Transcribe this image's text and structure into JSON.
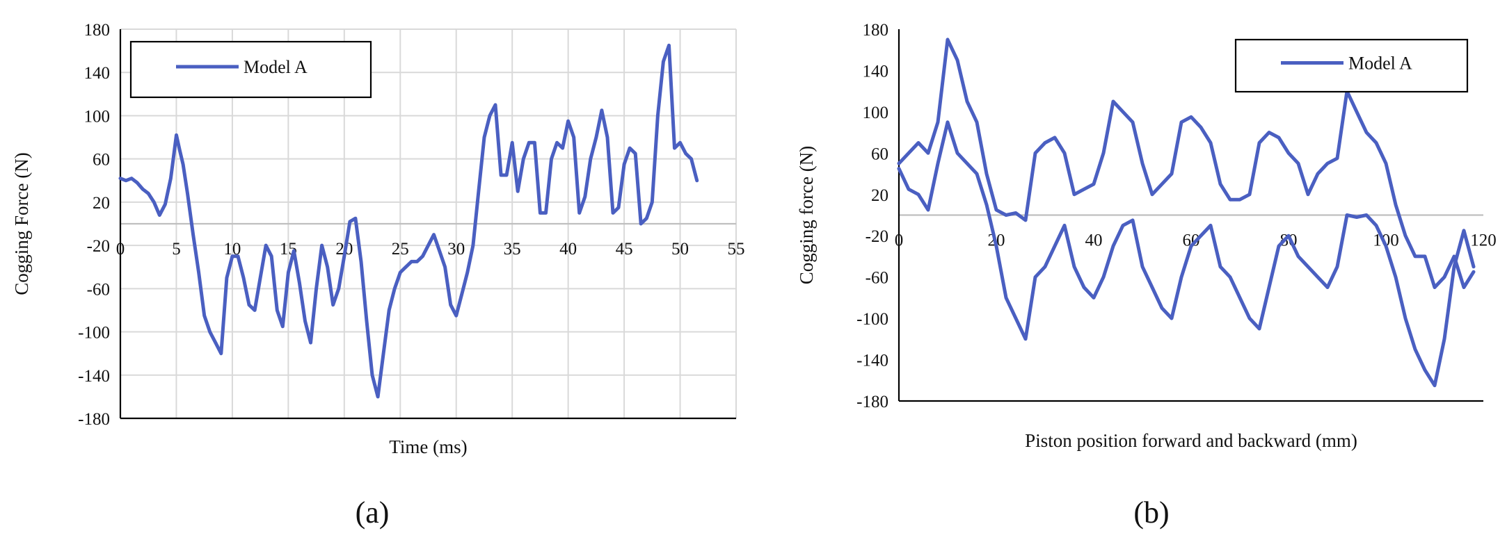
{
  "chart_data": [
    {
      "panel": "(a)",
      "type": "line",
      "title": "",
      "xlabel": "Time (ms)",
      "ylabel": "Cogging Force (N)",
      "xlim": [
        0,
        55
      ],
      "ylim": [
        -180,
        180
      ],
      "xticks": [
        0,
        5,
        10,
        15,
        20,
        25,
        30,
        35,
        40,
        45,
        50,
        55
      ],
      "yticks": [
        180,
        140,
        100,
        60,
        20,
        -20,
        -60,
        -100,
        -140,
        -180
      ],
      "grid": true,
      "legend": {
        "placement": "top-left",
        "entries": [
          "Model A"
        ]
      },
      "series": [
        {
          "name": "Model A",
          "color": "#4a5fc1",
          "x": [
            0,
            0.5,
            1,
            1.5,
            2,
            2.5,
            3,
            3.5,
            4,
            4.5,
            5,
            5.3,
            5.6,
            6,
            6.5,
            7,
            7.5,
            8,
            8.5,
            9,
            9.5,
            10,
            10.5,
            11,
            11.5,
            12,
            12.5,
            13,
            13.5,
            14,
            14.5,
            15,
            15.5,
            16,
            16.5,
            17,
            17.5,
            18,
            18.5,
            19,
            19.5,
            20,
            20.5,
            21,
            21.5,
            22,
            22.5,
            23,
            23.5,
            24,
            24.5,
            25,
            25.5,
            26,
            26.5,
            27,
            27.5,
            28,
            28.5,
            29,
            29.5,
            30,
            30.5,
            31,
            31.5,
            32,
            32.5,
            33,
            33.5,
            34,
            34.5,
            35,
            35.5,
            36,
            36.5,
            37,
            37.5,
            38,
            38.5,
            39,
            39.5,
            40,
            40.5,
            41,
            41.5,
            42,
            42.5,
            43,
            43.5,
            44,
            44.5,
            45,
            45.5,
            46,
            46.5,
            47,
            47.5,
            48,
            48.5,
            49,
            49.5,
            50,
            50.5,
            51,
            51.5
          ],
          "y": [
            42,
            40,
            42,
            38,
            32,
            28,
            20,
            8,
            18,
            42,
            82,
            68,
            55,
            28,
            -10,
            -45,
            -85,
            -100,
            -110,
            -120,
            -50,
            -30,
            -30,
            -50,
            -75,
            -80,
            -50,
            -20,
            -30,
            -80,
            -95,
            -45,
            -25,
            -55,
            -90,
            -110,
            -60,
            -20,
            -40,
            -75,
            -60,
            -30,
            2,
            5,
            -35,
            -90,
            -140,
            -160,
            -120,
            -80,
            -60,
            -45,
            -40,
            -35,
            -35,
            -30,
            -20,
            -10,
            -25,
            -40,
            -75,
            -85,
            -65,
            -45,
            -20,
            30,
            80,
            100,
            110,
            45,
            45,
            75,
            30,
            60,
            75,
            75,
            10,
            10,
            60,
            75,
            70,
            95,
            80,
            10,
            25,
            60,
            80,
            105,
            80,
            10,
            15,
            55,
            70,
            65,
            0,
            5,
            20,
            100,
            150,
            165,
            70,
            75,
            65,
            60,
            40
          ]
        }
      ]
    },
    {
      "panel": "(b)",
      "type": "line",
      "title": "",
      "xlabel": "Piston position forward and backward (mm)",
      "ylabel": "Cogging force (N)",
      "xlim": [
        0,
        120
      ],
      "ylim": [
        -180,
        180
      ],
      "xticks": [
        0,
        20,
        40,
        60,
        80,
        100,
        120
      ],
      "yticks": [
        180,
        140,
        100,
        60,
        20,
        -20,
        -60,
        -100,
        -140,
        -180
      ],
      "grid": false,
      "legend": {
        "placement": "top-right",
        "entries": [
          "Model A"
        ]
      },
      "series": [
        {
          "name": "Model A",
          "color": "#4a5fc1",
          "x": [
            0,
            2,
            4,
            6,
            8,
            10,
            12,
            14,
            16,
            18,
            20,
            22,
            24,
            26,
            28,
            30,
            32,
            34,
            36,
            38,
            40,
            42,
            44,
            46,
            48,
            50,
            52,
            54,
            56,
            58,
            60,
            62,
            64,
            66,
            68,
            70,
            72,
            74,
            76,
            78,
            80,
            82,
            84,
            86,
            88,
            90,
            92,
            94,
            96,
            98,
            100,
            102,
            104,
            106,
            108,
            110,
            112,
            114,
            116,
            118
          ],
          "y": [
            50,
            60,
            70,
            60,
            90,
            170,
            150,
            110,
            90,
            40,
            5,
            0,
            2,
            -5,
            60,
            70,
            75,
            60,
            20,
            25,
            30,
            60,
            110,
            100,
            90,
            50,
            20,
            30,
            40,
            90,
            95,
            85,
            70,
            30,
            15,
            15,
            20,
            70,
            80,
            75,
            60,
            50,
            20,
            40,
            50,
            55,
            120,
            100,
            80,
            70,
            50,
            10,
            -20,
            -40,
            -40,
            -70,
            -60,
            -40,
            -70,
            -55
          ]
        },
        {
          "name": "",
          "color": "#4a5fc1",
          "x": [
            0,
            2,
            4,
            6,
            8,
            10,
            12,
            14,
            16,
            18,
            20,
            22,
            24,
            26,
            28,
            30,
            32,
            34,
            36,
            38,
            40,
            42,
            44,
            46,
            48,
            50,
            52,
            54,
            56,
            58,
            60,
            62,
            64,
            66,
            68,
            70,
            72,
            74,
            76,
            78,
            80,
            82,
            84,
            86,
            88,
            90,
            92,
            94,
            96,
            98,
            100,
            102,
            104,
            106,
            108,
            110,
            112,
            114,
            116,
            118
          ],
          "y": [
            45,
            25,
            20,
            5,
            50,
            90,
            60,
            50,
            40,
            10,
            -30,
            -80,
            -100,
            -120,
            -60,
            -50,
            -30,
            -10,
            -50,
            -70,
            -80,
            -60,
            -30,
            -10,
            -5,
            -50,
            -70,
            -90,
            -100,
            -60,
            -30,
            -20,
            -10,
            -50,
            -60,
            -80,
            -100,
            -110,
            -70,
            -30,
            -20,
            -40,
            -50,
            -60,
            -70,
            -50,
            0,
            -2,
            0,
            -10,
            -30,
            -60,
            -100,
            -130,
            -150,
            -165,
            -120,
            -50,
            -15,
            -50
          ]
        }
      ]
    }
  ],
  "panel_labels": [
    "(a)",
    "(b)"
  ]
}
